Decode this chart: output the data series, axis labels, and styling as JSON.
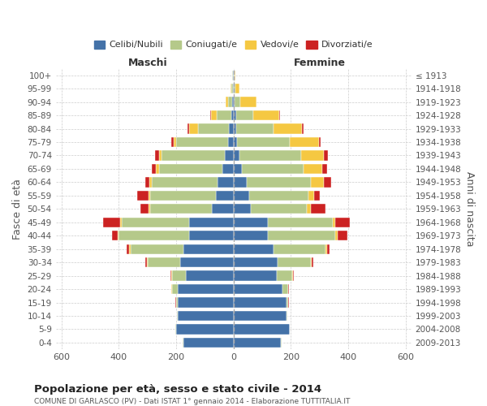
{
  "age_groups": [
    "100+",
    "95-99",
    "90-94",
    "85-89",
    "80-84",
    "75-79",
    "70-74",
    "65-69",
    "60-64",
    "55-59",
    "50-54",
    "45-49",
    "40-44",
    "35-39",
    "30-34",
    "25-29",
    "20-24",
    "15-19",
    "10-14",
    "5-9",
    "0-4"
  ],
  "birth_years": [
    "≤ 1913",
    "1914-1918",
    "1919-1923",
    "1924-1928",
    "1929-1933",
    "1934-1938",
    "1939-1943",
    "1944-1948",
    "1949-1953",
    "1954-1958",
    "1959-1963",
    "1964-1968",
    "1969-1973",
    "1974-1978",
    "1979-1983",
    "1984-1988",
    "1989-1993",
    "1994-1998",
    "1999-2003",
    "2004-2008",
    "2009-2013"
  ],
  "male": {
    "celibi": [
      2,
      2,
      4,
      8,
      15,
      20,
      30,
      40,
      55,
      60,
      75,
      155,
      155,
      175,
      185,
      165,
      195,
      195,
      195,
      200,
      175
    ],
    "coniugati": [
      2,
      5,
      15,
      50,
      110,
      180,
      220,
      220,
      230,
      230,
      215,
      235,
      245,
      185,
      115,
      50,
      20,
      5,
      3,
      2,
      2
    ],
    "vedovi": [
      1,
      3,
      8,
      20,
      30,
      10,
      10,
      10,
      8,
      5,
      5,
      5,
      5,
      3,
      2,
      1,
      1,
      1,
      0,
      0,
      0
    ],
    "divorziati": [
      0,
      0,
      0,
      3,
      5,
      8,
      15,
      15,
      15,
      40,
      30,
      60,
      20,
      10,
      5,
      3,
      2,
      1,
      0,
      0,
      0
    ]
  },
  "female": {
    "nubili": [
      2,
      2,
      4,
      8,
      10,
      12,
      20,
      30,
      45,
      55,
      60,
      120,
      120,
      140,
      155,
      150,
      170,
      185,
      185,
      195,
      165
    ],
    "coniugate": [
      2,
      5,
      20,
      60,
      130,
      185,
      215,
      215,
      225,
      205,
      195,
      225,
      235,
      180,
      115,
      55,
      20,
      5,
      3,
      2,
      2
    ],
    "vedove": [
      2,
      15,
      55,
      90,
      100,
      100,
      80,
      65,
      45,
      20,
      15,
      10,
      8,
      5,
      3,
      2,
      1,
      1,
      0,
      0,
      0
    ],
    "divorziate": [
      0,
      0,
      2,
      3,
      5,
      8,
      15,
      15,
      25,
      20,
      50,
      50,
      35,
      10,
      5,
      3,
      2,
      1,
      0,
      0,
      0
    ]
  },
  "colors": {
    "celibi": "#4472a8",
    "coniugati": "#b5c98a",
    "vedovi": "#f5c842",
    "divorziati": "#cc2222"
  },
  "title": "Popolazione per età, sesso e stato civile - 2014",
  "subtitle": "COMUNE DI GARLASCO (PV) - Dati ISTAT 1° gennaio 2014 - Elaborazione TUTTITALIA.IT",
  "xlabel_left": "Maschi",
  "xlabel_right": "Femmine",
  "ylabel": "Fasce di età",
  "ylabel_right": "Anni di nascita",
  "xlim": 620,
  "legend_labels": [
    "Celibi/Nubili",
    "Coniugati/e",
    "Vedovi/e",
    "Divorziati/e"
  ],
  "background_color": "#ffffff",
  "grid_color": "#cccccc"
}
